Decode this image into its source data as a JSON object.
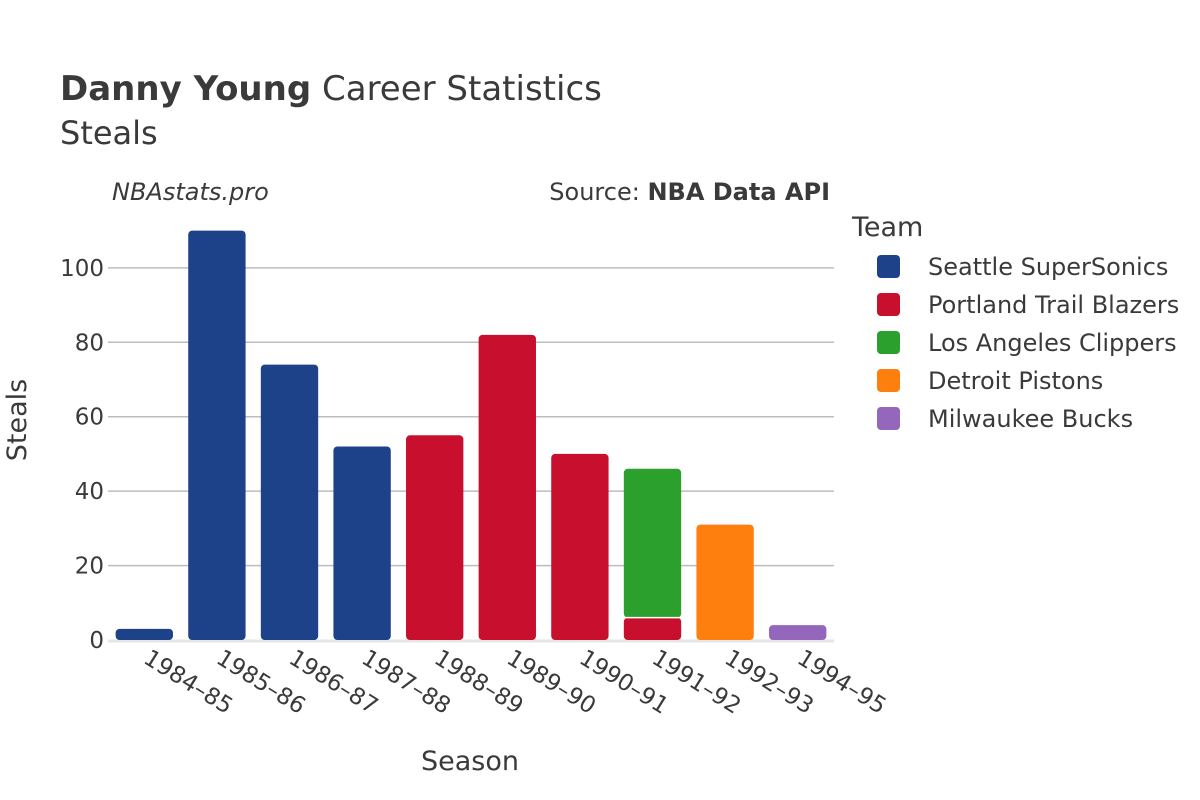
{
  "title": {
    "bold": "Danny Young",
    "rest": " Career Statistics",
    "subtitle": "Steals"
  },
  "watermark": "NBAstats.pro",
  "source": {
    "prefix": "Source: ",
    "name": "NBA Data API"
  },
  "chart_data": {
    "type": "bar",
    "stacked": true,
    "xlabel": "Season",
    "ylabel": "Steals",
    "ylim": [
      0,
      115
    ],
    "yticks": [
      0,
      20,
      40,
      60,
      80,
      100
    ],
    "grid": true,
    "legend_placement": "right",
    "legend_title": "Team",
    "categories": [
      "1984–85",
      "1985–86",
      "1986–87",
      "1987–88",
      "1988–89",
      "1989–90",
      "1990–91",
      "1991–92",
      "1992–93",
      "1994–95"
    ],
    "series": [
      {
        "name": "Seattle SuperSonics",
        "color": "#1d428a",
        "values": [
          3,
          110,
          74,
          52,
          0,
          0,
          0,
          0,
          0,
          0
        ]
      },
      {
        "name": "Portland Trail Blazers",
        "color": "#c8102e",
        "values": [
          0,
          0,
          0,
          0,
          55,
          82,
          50,
          6,
          0,
          0
        ]
      },
      {
        "name": "Los Angeles Clippers",
        "color": "#2ca02c",
        "values": [
          0,
          0,
          0,
          0,
          0,
          0,
          0,
          40,
          0,
          0
        ]
      },
      {
        "name": "Detroit Pistons",
        "color": "#ff7f0e",
        "values": [
          0,
          0,
          0,
          0,
          0,
          0,
          0,
          0,
          31,
          0
        ]
      },
      {
        "name": "Milwaukee Bucks",
        "color": "#9467bd",
        "values": [
          0,
          0,
          0,
          0,
          0,
          0,
          0,
          0,
          0,
          4
        ]
      }
    ]
  }
}
